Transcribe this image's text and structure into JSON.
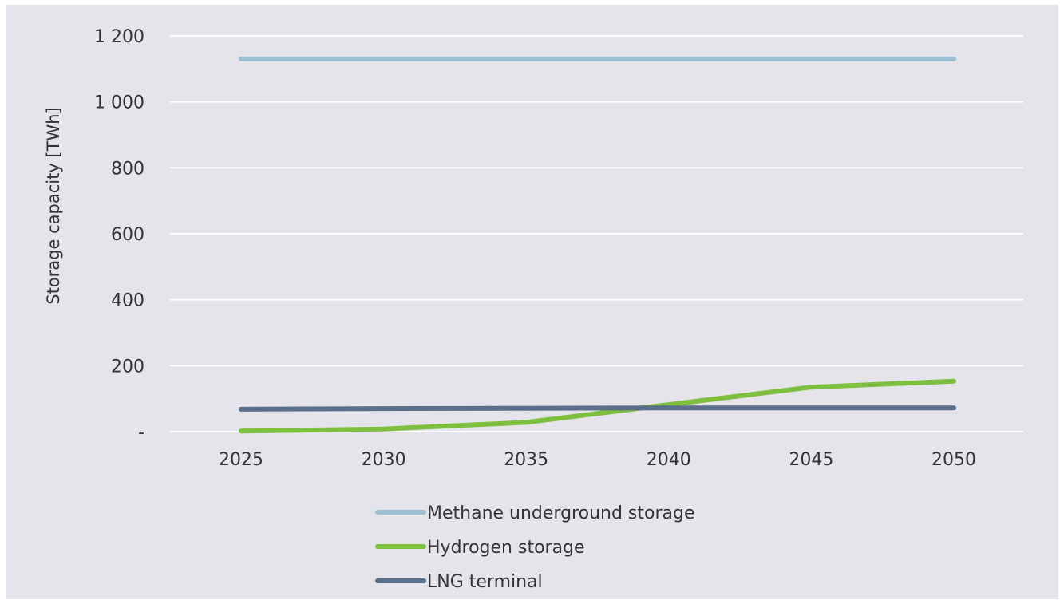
{
  "chart_data": {
    "type": "line",
    "ylabel": "Storage capacity [TWh]",
    "xlabel": "",
    "categories": [
      "2025",
      "2030",
      "2035",
      "2040",
      "2045",
      "2050"
    ],
    "y_ticks": [
      {
        "value": 0,
        "label": "-"
      },
      {
        "value": 200,
        "label": "200"
      },
      {
        "value": 400,
        "label": "400"
      },
      {
        "value": 600,
        "label": "600"
      },
      {
        "value": 800,
        "label": "800"
      },
      {
        "value": 1000,
        "label": "1 000"
      },
      {
        "value": 1200,
        "label": "1 200"
      }
    ],
    "ylim": [
      0,
      1200
    ],
    "grid": true,
    "legend_position": "bottom",
    "series": [
      {
        "name": "Methane underground storage",
        "color": "#9dbfd2",
        "values": [
          1130,
          1130,
          1130,
          1130,
          1130,
          1130
        ]
      },
      {
        "name": "Hydrogen storage",
        "color": "#7fbf3f",
        "values": [
          2,
          8,
          28,
          82,
          135,
          153
        ]
      },
      {
        "name": "LNG terminal",
        "color": "#5b6e8c",
        "values": [
          68,
          70,
          71,
          72,
          72,
          72
        ]
      }
    ]
  },
  "colors": {
    "plot_background": "#e4e4ea",
    "gridline": "#ffffff"
  }
}
